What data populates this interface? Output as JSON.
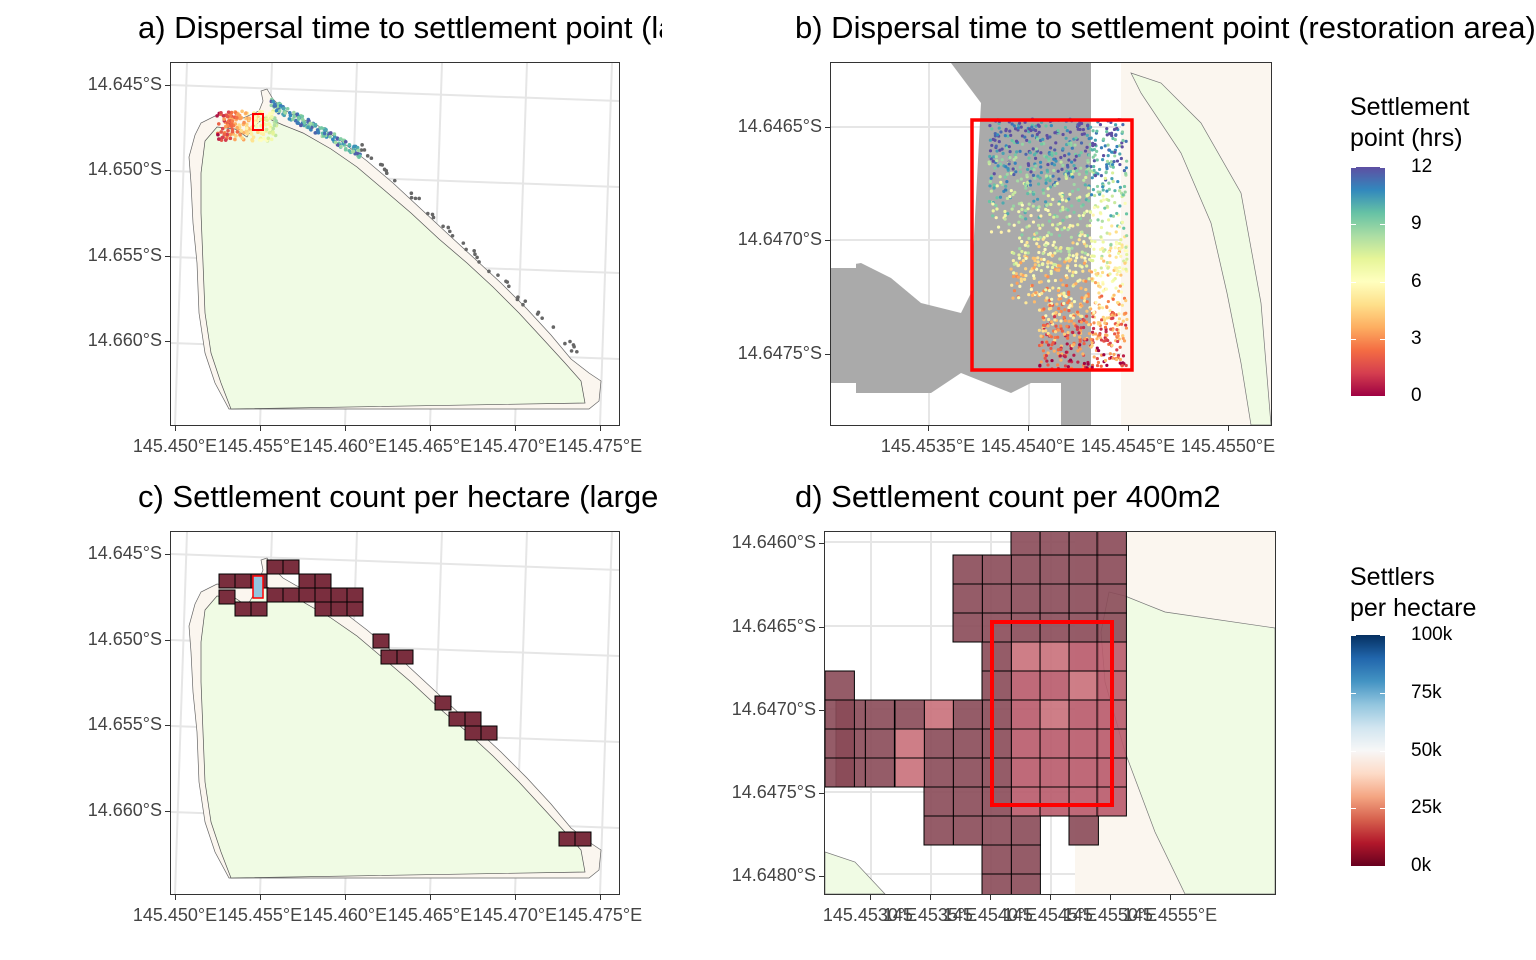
{
  "panels": {
    "a": {
      "title": "a) Dispersal time to settlement point (large area)",
      "y_ticks": [
        "14.645°S",
        "14.650°S",
        "14.655°S",
        "14.660°S"
      ],
      "x_ticks": [
        "145.450°E",
        "145.455°E",
        "145.460°E",
        "145.465°E",
        "145.470°E",
        "145.475°E"
      ]
    },
    "b": {
      "title": "b) Dispersal time to settlement point (restoration area)",
      "y_ticks": [
        "14.6465°S",
        "14.6470°S",
        "14.6475°S"
      ],
      "x_ticks": [
        "145.4535°E",
        "145.4540°E",
        "145.4545°E",
        "145.4550°E"
      ]
    },
    "c": {
      "title": "c) Settlement count per hectare (large area)",
      "y_ticks": [
        "14.645°S",
        "14.650°S",
        "14.655°S",
        "14.660°S"
      ],
      "x_ticks": [
        "145.450°E",
        "145.455°E",
        "145.460°E",
        "145.465°E",
        "145.470°E",
        "145.475°E"
      ]
    },
    "d": {
      "title": "d) Settlement count per 400m2",
      "y_ticks": [
        "14.6460°S",
        "14.6465°S",
        "14.6470°S",
        "14.6475°S",
        "14.6480°S"
      ],
      "x_ticks": [
        "145.4530°E",
        "145.4535°E",
        "145.4540°E",
        "145.4545°E",
        "145.4550°E",
        "145.4555°E"
      ]
    }
  },
  "legends": {
    "time": {
      "title_line1": "Settlement",
      "title_line2": "point (hrs)",
      "labels": [
        "12",
        "9",
        "6",
        "3",
        "0"
      ],
      "palette": [
        "#5E4FA2",
        "#3288BD",
        "#66C2A5",
        "#ABDDA4",
        "#E6F598",
        "#FFFFBF",
        "#FEE08B",
        "#FDAE61",
        "#F46D43",
        "#D53E4F",
        "#9E0142"
      ]
    },
    "settlers": {
      "title_line1": "Settlers",
      "title_line2": "per hectare",
      "labels": [
        "100k",
        "75k",
        "50k",
        "25k",
        "0k"
      ],
      "palette": [
        "#053061",
        "#2166AC",
        "#4393C3",
        "#92C5DE",
        "#D1E5F0",
        "#F7F7F7",
        "#FDDBC7",
        "#F4A582",
        "#D6604D",
        "#B2182B",
        "#67001F"
      ]
    }
  },
  "colors": {
    "land": "#F0FBE4",
    "reef": "#FBF6EF",
    "restoration_box": "#FF0000",
    "grid": "#E6E6E6",
    "dispersal_grey": "#AAAAAA",
    "cell_dark": "#7A2E3E"
  }
}
